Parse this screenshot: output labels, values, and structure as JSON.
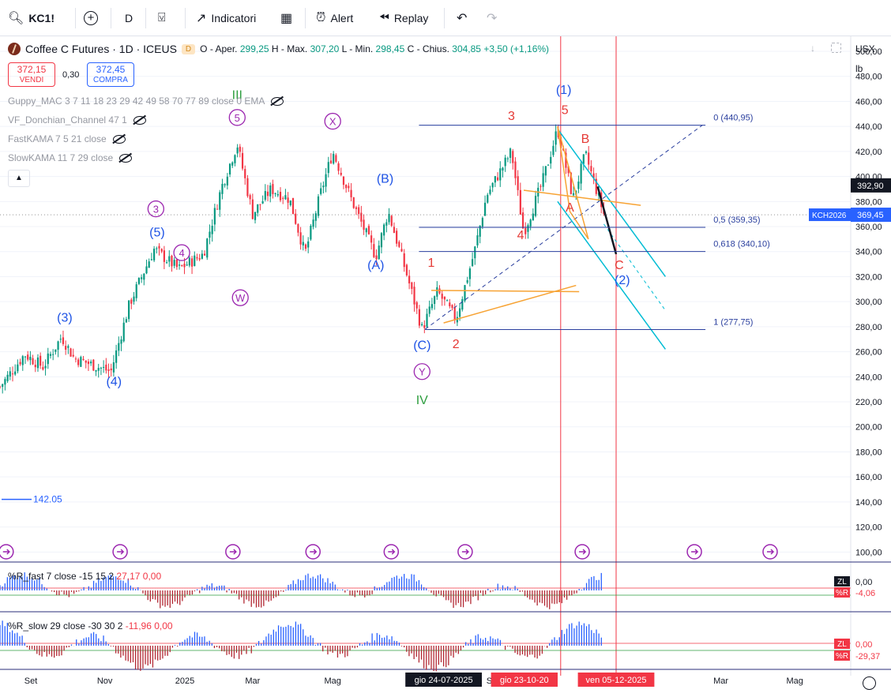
{
  "toolbar": {
    "symbol": "KC1!",
    "interval": "D",
    "indicators_label": "Indicatori",
    "alert_label": "Alert",
    "replay_label": "Replay"
  },
  "legend": {
    "title": "Coffee C Futures · 1D · ICEUS",
    "badge": "D",
    "o_label": "O - Aper.",
    "o_value": "299,25",
    "h_label": "H - Max.",
    "h_value": "307,20",
    "l_label": "L - Min.",
    "l_value": "298,45",
    "c_label": "C - Chius.",
    "c_value": "304,85",
    "change": "+3,50 (+1,16%)",
    "sell_price": "372,15",
    "sell_label": "VENDI",
    "spread": "0,30",
    "buy_price": "372,45",
    "buy_label": "COMPRA"
  },
  "indicators": [
    "Guppy_MAC 3 7 11 18 23 29 42 49 58 70 77 89 close 0 EMA",
    "VF_Donchian_Channel 47 1",
    "FastKAMA 7 5 21 close",
    "SlowKAMA 11 7 29 close"
  ],
  "scale": {
    "currency": "USX",
    "unit": "lb"
  },
  "colors": {
    "up": "#089981",
    "down": "#f23645",
    "blue_wave": "#1e53e5",
    "purple_wave": "#9c27b0",
    "green_wave": "#2e9e3f",
    "red_wave": "#e53935",
    "fib": "#2a3f9e",
    "channel": "#00bcd4",
    "orange": "#f7a334"
  },
  "chart_data": {
    "type": "candlestick",
    "title": "Coffee C Futures · 1D · ICEUS",
    "yaxis_ticks": [
      "500,00",
      "480,00",
      "460,00",
      "440,00",
      "420,00",
      "400,00",
      "380,00",
      "360,00",
      "340,00",
      "320,00",
      "300,00",
      "280,00",
      "260,00",
      "240,00",
      "220,00",
      "200,00",
      "180,00",
      "160,00",
      "140,00",
      "120,00",
      "100,00"
    ],
    "ylim": [
      92,
      512
    ],
    "xaxis_ticks": [
      {
        "label": "Set",
        "t": 0.05
      },
      {
        "label": "Nov",
        "t": 0.17
      },
      {
        "label": "2025",
        "t": 0.3
      },
      {
        "label": "Mar",
        "t": 0.41
      },
      {
        "label": "Mag",
        "t": 0.54
      },
      {
        "label": "Set",
        "t": 0.8
      },
      {
        "label": "Mar",
        "t": 1.17
      },
      {
        "label": "Mag",
        "t": 1.29
      }
    ],
    "date_badges": [
      {
        "label": "gio 24-07-2025",
        "t": 0.72
      },
      {
        "label": "gio 23-10-20",
        "t": 0.9
      },
      {
        "label": "ven 05-12-2025",
        "t": 1.0
      }
    ],
    "last_price": {
      "label": "392,90",
      "value": 392.9
    },
    "kch_price": {
      "label": "KCH2026",
      "value_label": "369,45",
      "value": 369.45
    },
    "anchors": [
      {
        "t": 0.0,
        "v": 232
      },
      {
        "t": 0.04,
        "v": 258
      },
      {
        "t": 0.07,
        "v": 248
      },
      {
        "t": 0.1,
        "v": 272
      },
      {
        "t": 0.12,
        "v": 255
      },
      {
        "t": 0.18,
        "v": 244
      },
      {
        "t": 0.21,
        "v": 298
      },
      {
        "t": 0.25,
        "v": 342
      },
      {
        "t": 0.29,
        "v": 326
      },
      {
        "t": 0.33,
        "v": 338
      },
      {
        "t": 0.36,
        "v": 392
      },
      {
        "t": 0.385,
        "v": 426
      },
      {
        "t": 0.41,
        "v": 370
      },
      {
        "t": 0.44,
        "v": 390
      },
      {
        "t": 0.47,
        "v": 382
      },
      {
        "t": 0.495,
        "v": 338
      },
      {
        "t": 0.52,
        "v": 386
      },
      {
        "t": 0.54,
        "v": 420
      },
      {
        "t": 0.57,
        "v": 382
      },
      {
        "t": 0.61,
        "v": 336
      },
      {
        "t": 0.63,
        "v": 372
      },
      {
        "t": 0.66,
        "v": 322
      },
      {
        "t": 0.685,
        "v": 278
      },
      {
        "t": 0.71,
        "v": 308
      },
      {
        "t": 0.74,
        "v": 286
      },
      {
        "t": 0.77,
        "v": 340
      },
      {
        "t": 0.79,
        "v": 385
      },
      {
        "t": 0.83,
        "v": 420
      },
      {
        "t": 0.85,
        "v": 355
      },
      {
        "t": 0.88,
        "v": 395
      },
      {
        "t": 0.905,
        "v": 438
      },
      {
        "t": 0.93,
        "v": 382
      },
      {
        "t": 0.95,
        "v": 418
      },
      {
        "t": 0.98,
        "v": 370
      }
    ],
    "fib_levels": [
      {
        "label": "0 (440,95)",
        "value": 440.95
      },
      {
        "label": "0,5 (359,35)",
        "value": 359.35
      },
      {
        "label": "0,618 (340,10)",
        "value": 340.1
      },
      {
        "label": "1 (277,75)",
        "value": 277.75
      }
    ],
    "donchian_label": "142.05",
    "donchian_value": 142.05,
    "wave_labels": [
      {
        "text": "(3)",
        "t": 0.105,
        "v": 284,
        "color": "blue"
      },
      {
        "text": "(4)",
        "t": 0.185,
        "v": 233,
        "color": "blue"
      },
      {
        "text": "(5)",
        "t": 0.255,
        "v": 352,
        "color": "blue"
      },
      {
        "text": "(A)",
        "t": 0.61,
        "v": 326,
        "color": "blue"
      },
      {
        "text": "(B)",
        "t": 0.625,
        "v": 395,
        "color": "blue"
      },
      {
        "text": "(C)",
        "t": 0.685,
        "v": 262,
        "color": "blue"
      },
      {
        "text": "(1)",
        "t": 0.915,
        "v": 466,
        "color": "blue"
      },
      {
        "text": "(2)",
        "t": 1.01,
        "v": 314,
        "color": "blue"
      },
      {
        "text": "3",
        "t": 0.253,
        "v": 371,
        "color": "purple",
        "circle": true
      },
      {
        "text": "4",
        "t": 0.295,
        "v": 336,
        "color": "purple",
        "circle": true
      },
      {
        "text": "5",
        "t": 0.385,
        "v": 444,
        "color": "purple",
        "circle": true
      },
      {
        "text": "W",
        "t": 0.39,
        "v": 300,
        "color": "purple",
        "circle": true
      },
      {
        "text": "X",
        "t": 0.54,
        "v": 441,
        "color": "purple",
        "circle": true
      },
      {
        "text": "Y",
        "t": 0.685,
        "v": 241,
        "color": "purple",
        "circle": true
      },
      {
        "text": "III",
        "t": 0.385,
        "v": 462,
        "color": "green"
      },
      {
        "text": "IV",
        "t": 0.685,
        "v": 218,
        "color": "green"
      },
      {
        "text": "1",
        "t": 0.7,
        "v": 328,
        "color": "red"
      },
      {
        "text": "2",
        "t": 0.74,
        "v": 263,
        "color": "red"
      },
      {
        "text": "3",
        "t": 0.83,
        "v": 445,
        "color": "red"
      },
      {
        "text": "4",
        "t": 0.845,
        "v": 350,
        "color": "red"
      },
      {
        "text": "5",
        "t": 0.917,
        "v": 450,
        "color": "red"
      },
      {
        "text": "A",
        "t": 0.925,
        "v": 372,
        "color": "red"
      },
      {
        "text": "B",
        "t": 0.95,
        "v": 427,
        "color": "red"
      },
      {
        "text": "C",
        "t": 1.005,
        "v": 326,
        "color": "red"
      }
    ],
    "oscillators": [
      {
        "label": "%R_fast 7 close -15 15 2",
        "v1": "27,17",
        "v2": "0,00",
        "zl": "0,00",
        "r": "-4,06"
      },
      {
        "label": "%R_slow 29 close -30 30 2",
        "v1": "-11,96",
        "v2": "0,00",
        "zl": "0,00",
        "r": "-29,37"
      }
    ],
    "osc_tags": {
      "zl": "ZL",
      "r": "%R"
    }
  }
}
